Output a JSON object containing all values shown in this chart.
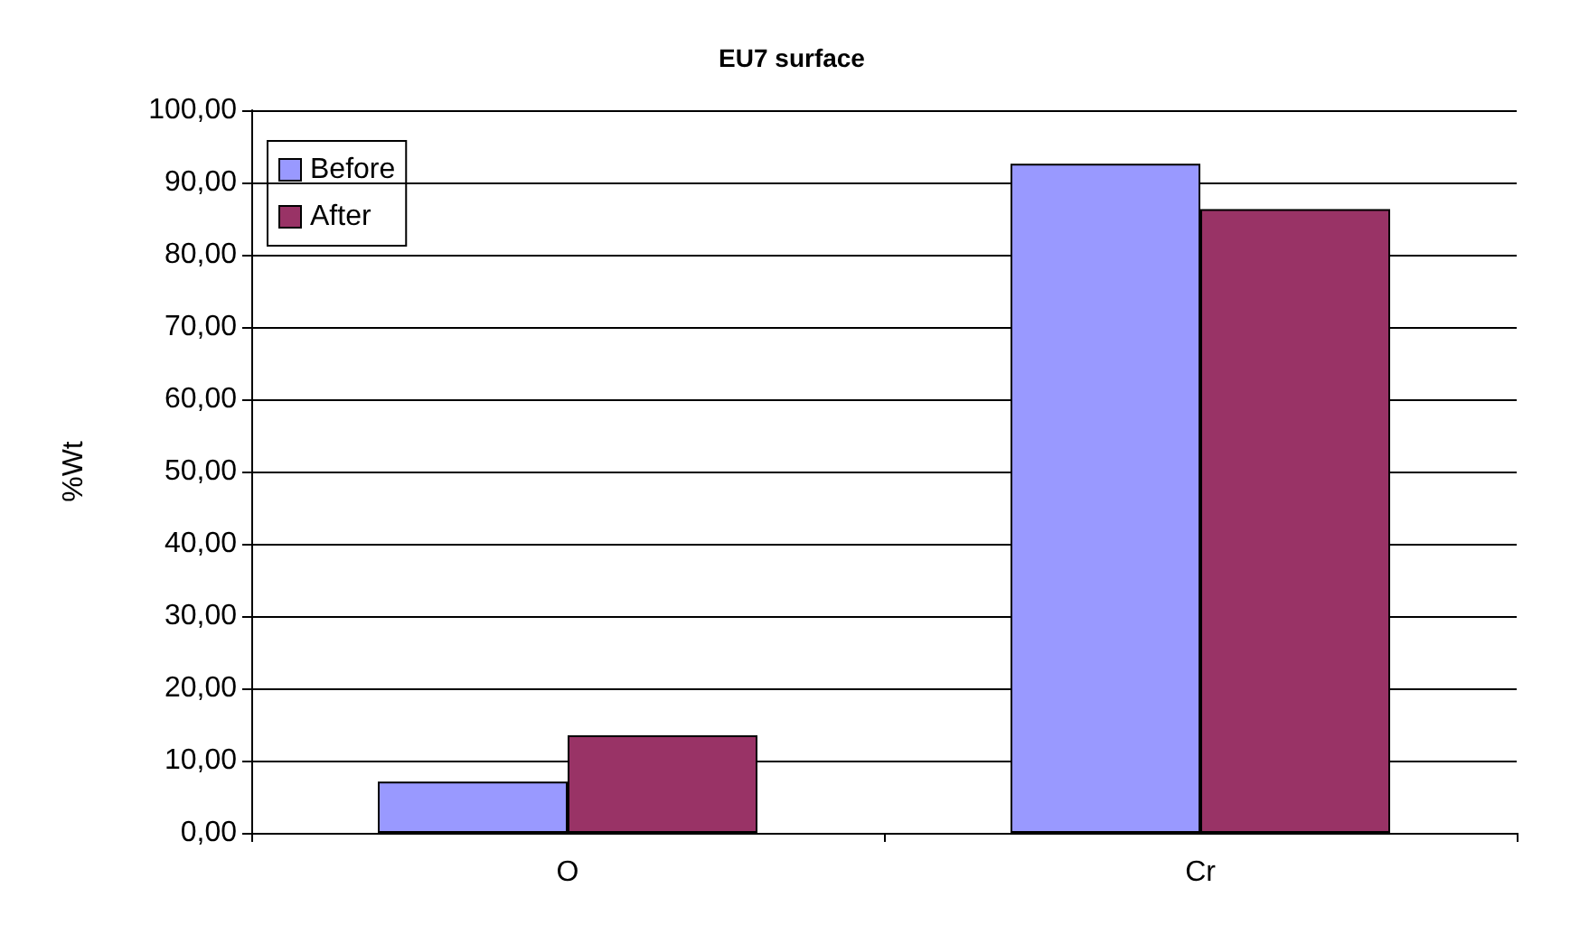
{
  "chart_data": {
    "type": "bar",
    "title": "EU7 surface",
    "ylabel": "%Wt",
    "categories": [
      "O",
      "Cr"
    ],
    "series": [
      {
        "name": "Before",
        "color": "#9999ff",
        "values": [
          7.1,
          92.6
        ]
      },
      {
        "name": "After",
        "color": "#993366",
        "values": [
          13.5,
          86.3
        ]
      }
    ],
    "ylim": [
      0,
      100
    ],
    "yticks": [
      {
        "value": 0,
        "label": "0,00"
      },
      {
        "value": 10,
        "label": "10,00"
      },
      {
        "value": 20,
        "label": "20,00"
      },
      {
        "value": 30,
        "label": "30,00"
      },
      {
        "value": 40,
        "label": "40,00"
      },
      {
        "value": 50,
        "label": "50,00"
      },
      {
        "value": 60,
        "label": "60,00"
      },
      {
        "value": 70,
        "label": "70,00"
      },
      {
        "value": 80,
        "label": "80,00"
      },
      {
        "value": 90,
        "label": "90,00"
      },
      {
        "value": 100,
        "label": "100,00"
      }
    ],
    "grid": "y",
    "legend": "top left"
  }
}
